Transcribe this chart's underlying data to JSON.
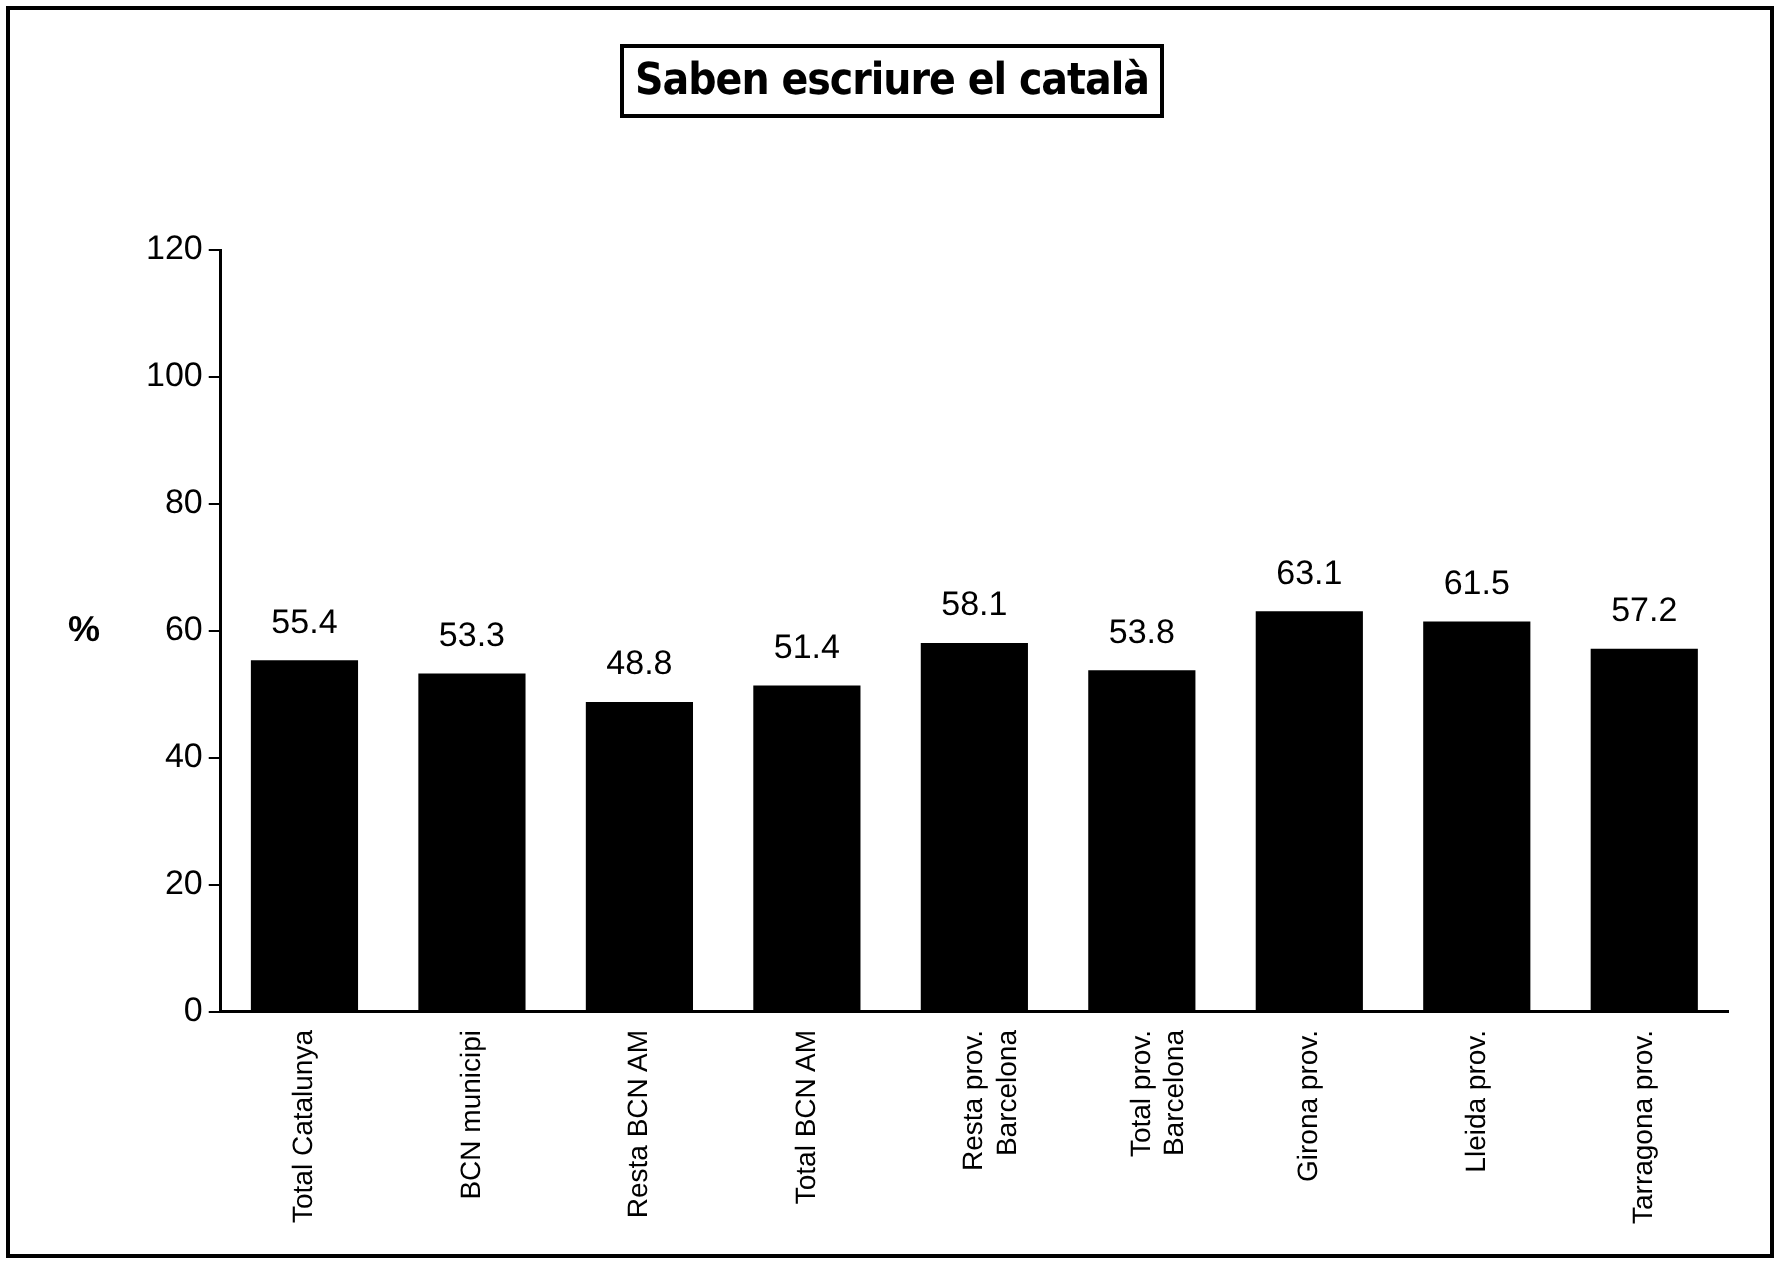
{
  "chart_data": {
    "type": "bar",
    "title": "Saben escriure el català",
    "ylabel": "%",
    "categories": [
      "Total Catalunya",
      "BCN municipi",
      "Resta BCN AM",
      "Total BCN AM",
      "Resta prov. Barcelona",
      "Total prov. Barcelona",
      "Girona prov.",
      "Lleida prov.",
      "Tarragona prov."
    ],
    "values": [
      55.4,
      53.3,
      48.8,
      51.4,
      58.1,
      53.8,
      63.1,
      61.5,
      57.2
    ],
    "color": "#000000",
    "ylim": [
      0,
      120
    ],
    "yticks": [
      0,
      20,
      40,
      60,
      80,
      100,
      120
    ],
    "grid": false,
    "legend": false,
    "data_labels": true
  }
}
